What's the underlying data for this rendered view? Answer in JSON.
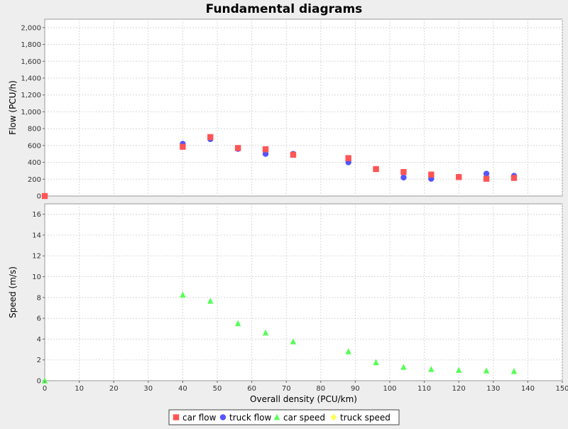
{
  "chart_data": {
    "type": "scatter",
    "title": "Fundamental diagrams",
    "xlabel": "Overall density (PCU/km)",
    "xlim": [
      0,
      150
    ],
    "xticks": [
      0,
      10,
      20,
      30,
      40,
      50,
      60,
      70,
      80,
      90,
      100,
      110,
      120,
      130,
      140,
      150
    ],
    "grid": true,
    "legend_position": "bottom",
    "subplots": [
      {
        "id": "flow",
        "ylabel": "Flow (PCU/h)",
        "ylim": [
          0,
          2100
        ],
        "yticks": [
          0,
          200,
          400,
          600,
          800,
          1000,
          1200,
          1400,
          1600,
          1800,
          2000
        ],
        "ytick_labels": [
          "0",
          "200",
          "400",
          "600",
          "800",
          "1,000",
          "1,200",
          "1,400",
          "1,600",
          "1,800",
          "2,000"
        ],
        "series": [
          {
            "name": "truck flow",
            "marker": "circle",
            "color": "#5555ff",
            "points": [
              [
                40,
                620
              ],
              [
                48,
                675
              ],
              [
                56,
                560
              ],
              [
                64,
                500
              ],
              [
                72,
                500
              ],
              [
                88,
                400
              ],
              [
                96,
                320
              ],
              [
                104,
                220
              ],
              [
                112,
                205
              ],
              [
                120,
                225
              ],
              [
                128,
                265
              ],
              [
                136,
                240
              ]
            ]
          },
          {
            "name": "car flow",
            "marker": "square",
            "color": "#ff5555",
            "points": [
              [
                0,
                0
              ],
              [
                40,
                585
              ],
              [
                48,
                700
              ],
              [
                56,
                570
              ],
              [
                64,
                555
              ],
              [
                72,
                490
              ],
              [
                88,
                450
              ],
              [
                96,
                320
              ],
              [
                104,
                285
              ],
              [
                112,
                255
              ],
              [
                120,
                225
              ],
              [
                128,
                205
              ],
              [
                136,
                215
              ]
            ]
          }
        ]
      },
      {
        "id": "speed",
        "ylabel": "Speed (m/s)",
        "ylim": [
          0,
          17
        ],
        "yticks": [
          0,
          2,
          4,
          6,
          8,
          10,
          12,
          14,
          16
        ],
        "ytick_labels": [
          "0",
          "2",
          "4",
          "6",
          "8",
          "10",
          "12",
          "14",
          "16"
        ],
        "series": [
          {
            "name": "car speed",
            "marker": "triangle",
            "color": "#55ff55",
            "points": [
              [
                0,
                0
              ],
              [
                40,
                8.25
              ],
              [
                48,
                7.65
              ],
              [
                56,
                5.5
              ],
              [
                64,
                4.6
              ],
              [
                72,
                3.75
              ],
              [
                88,
                2.8
              ],
              [
                96,
                1.75
              ],
              [
                104,
                1.3
              ],
              [
                112,
                1.1
              ],
              [
                120,
                1.0
              ],
              [
                128,
                0.95
              ],
              [
                136,
                0.9
              ]
            ]
          },
          {
            "name": "truck speed",
            "marker": "diamond",
            "color": "#ffff55",
            "points": []
          }
        ]
      }
    ],
    "legend": [
      {
        "name": "car flow",
        "marker": "square",
        "color": "#ff5555"
      },
      {
        "name": "truck flow",
        "marker": "circle",
        "color": "#5555ff"
      },
      {
        "name": "car speed",
        "marker": "triangle",
        "color": "#55ff55"
      },
      {
        "name": "truck speed",
        "marker": "diamond",
        "color": "#ffff55"
      }
    ]
  }
}
